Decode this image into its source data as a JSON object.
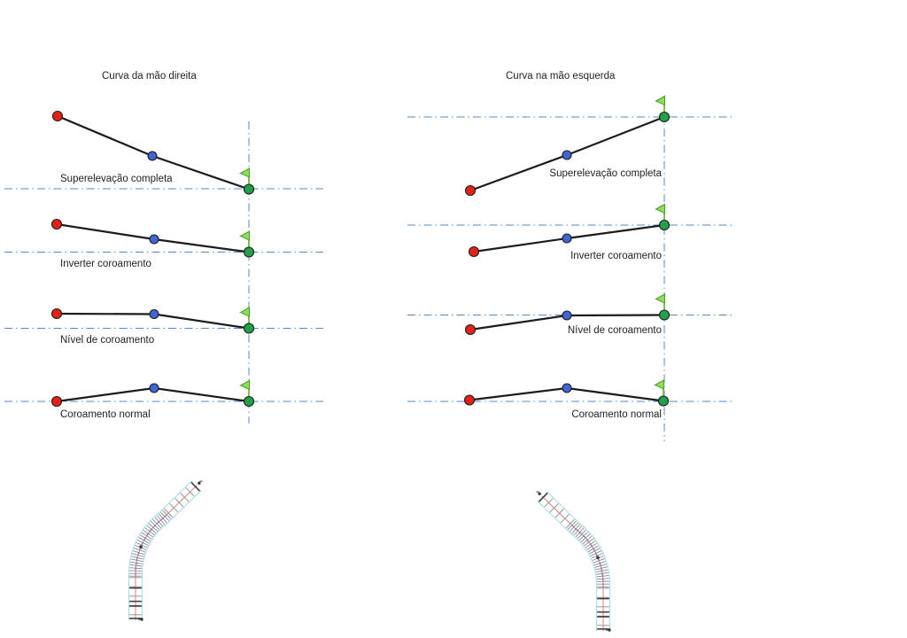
{
  "left": {
    "title": "Curva da mão direita",
    "stages": [
      "Superelevação completa",
      "Inverter coroamento",
      "Nível de coroamento",
      "Coroamento normal"
    ]
  },
  "right": {
    "title": "Curva na mão esquerda",
    "stages": [
      "Superelevação completa",
      "Inverter coroamento",
      "Nível de coroamento",
      "Coroamento normal"
    ]
  },
  "colors": {
    "datum_line": "#5b89c0",
    "section_line": "#1c1c1c",
    "point_red": "#e32119",
    "point_blue": "#3f66d4",
    "point_green": "#22a04c",
    "flag_green": "#8ede5a",
    "flag_stem_green": "#7cc24a",
    "road_edge_cyan": "#a5dced",
    "road_centerline_red": "#e08080",
    "road_tick_gray": "#8f8f8f",
    "road_spiral_blue": "#7470c8"
  },
  "icons": {
    "flag": "green-flag-marker-icon"
  }
}
